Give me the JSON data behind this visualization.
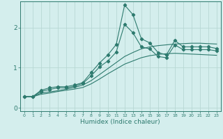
{
  "xlabel": "Humidex (Indice chaleur)",
  "background_color": "#d4eeed",
  "line_color": "#2d7a6e",
  "grid_color": "#b8d8d4",
  "xlim": [
    -0.5,
    23.5
  ],
  "ylim": [
    -0.08,
    2.65
  ],
  "yticks": [
    0,
    1,
    2
  ],
  "xticks": [
    0,
    1,
    2,
    3,
    4,
    5,
    6,
    7,
    8,
    9,
    10,
    11,
    12,
    13,
    14,
    15,
    16,
    17,
    18,
    19,
    20,
    21,
    22,
    23
  ],
  "lines": [
    {
      "x": [
        0,
        1,
        2,
        3,
        4,
        5,
        6,
        7,
        8,
        9,
        10,
        11,
        12,
        13,
        14,
        15,
        16,
        17,
        18,
        19,
        20,
        21,
        22,
        23
      ],
      "y": [
        0.28,
        0.28,
        0.44,
        0.5,
        0.53,
        0.53,
        0.57,
        0.63,
        0.88,
        1.12,
        1.32,
        1.58,
        2.56,
        2.32,
        1.72,
        1.62,
        1.38,
        1.32,
        1.68,
        1.52,
        1.52,
        1.52,
        1.52,
        1.48
      ],
      "marker": true
    },
    {
      "x": [
        0,
        1,
        2,
        3,
        4,
        5,
        6,
        7,
        8,
        9,
        10,
        11,
        12,
        13,
        14,
        15,
        16,
        17,
        18,
        19,
        20,
        21,
        22,
        23
      ],
      "y": [
        0.28,
        0.28,
        0.37,
        0.4,
        0.43,
        0.47,
        0.51,
        0.57,
        0.68,
        0.83,
        0.98,
        1.13,
        1.28,
        1.38,
        1.47,
        1.52,
        1.55,
        1.57,
        1.59,
        1.6,
        1.61,
        1.61,
        1.6,
        1.59
      ],
      "marker": false
    },
    {
      "x": [
        0,
        1,
        2,
        3,
        4,
        5,
        6,
        7,
        8,
        9,
        10,
        11,
        12,
        13,
        14,
        15,
        16,
        17,
        18,
        19,
        20,
        21,
        22,
        23
      ],
      "y": [
        0.28,
        0.28,
        0.34,
        0.37,
        0.41,
        0.44,
        0.47,
        0.51,
        0.6,
        0.72,
        0.85,
        0.97,
        1.09,
        1.17,
        1.25,
        1.3,
        1.33,
        1.35,
        1.36,
        1.35,
        1.34,
        1.33,
        1.32,
        1.31
      ],
      "marker": false
    },
    {
      "x": [
        0,
        1,
        2,
        3,
        4,
        5,
        6,
        7,
        8,
        9,
        10,
        11,
        12,
        13,
        14,
        15,
        16,
        17,
        18,
        19,
        20,
        21,
        22,
        23
      ],
      "y": [
        0.28,
        0.28,
        0.41,
        0.46,
        0.5,
        0.5,
        0.54,
        0.61,
        0.8,
        1.02,
        1.17,
        1.39,
        2.08,
        1.87,
        1.52,
        1.47,
        1.28,
        1.25,
        1.57,
        1.45,
        1.45,
        1.45,
        1.45,
        1.42
      ],
      "marker": true
    }
  ]
}
